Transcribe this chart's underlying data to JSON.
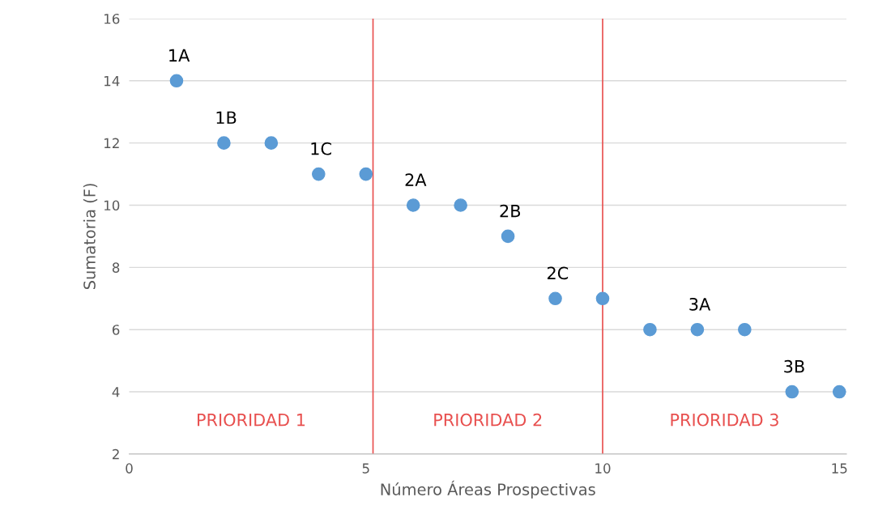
{
  "chart_data": {
    "type": "scatter",
    "xlabel": "Número Áreas Prospectivas",
    "ylabel": "Sumatoria (F)",
    "x": [
      1,
      2,
      3,
      4,
      5,
      6,
      7,
      8,
      9,
      10,
      11,
      12,
      13,
      14,
      15
    ],
    "values": [
      14,
      12,
      12,
      11,
      11,
      10,
      10,
      9,
      7,
      7,
      6,
      6,
      6,
      4,
      4
    ],
    "color": "#5b9bd5",
    "marker": "circle",
    "xlim": [
      0,
      15.15
    ],
    "xticks": [
      0,
      5,
      10,
      15
    ],
    "ylim": [
      2,
      16
    ],
    "yticks": [
      2,
      4,
      6,
      8,
      10,
      12,
      14,
      16
    ],
    "grid": "y",
    "ref_lines": [
      {
        "axis": "x",
        "value": 5.15,
        "color": "#e8504f"
      },
      {
        "axis": "x",
        "value": 10,
        "color": "#e8504f"
      }
    ],
    "annotations": [
      {
        "text": "1A",
        "x": 1,
        "y": 14
      },
      {
        "text": "1B",
        "x": 2,
        "y": 12
      },
      {
        "text": "1C",
        "x": 4,
        "y": 11
      },
      {
        "text": "2A",
        "x": 6,
        "y": 10
      },
      {
        "text": "2B",
        "x": 8,
        "y": 9
      },
      {
        "text": "2C",
        "x": 9,
        "y": 7
      },
      {
        "text": "3A",
        "x": 12,
        "y": 6
      },
      {
        "text": "3B",
        "x": 14,
        "y": 4
      },
      "PRIORIDAD 1",
      "PRIORIDAD 2",
      "PRIORIDAD 3"
    ]
  }
}
